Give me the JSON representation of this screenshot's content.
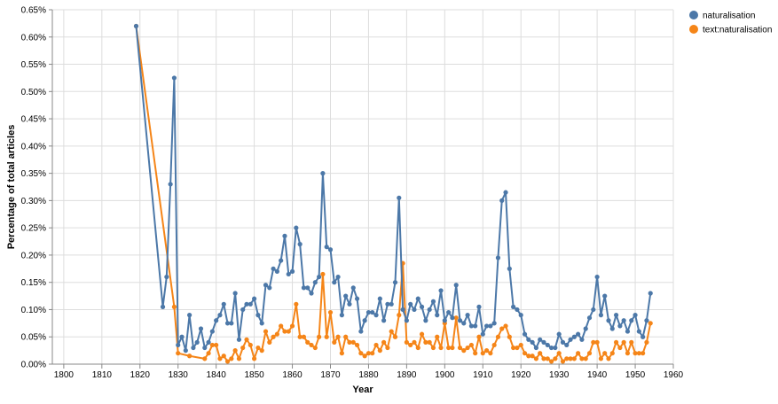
{
  "chart_data": {
    "type": "line",
    "xlabel": "Year",
    "ylabel": "Percentage of total articles",
    "xlim": [
      1797,
      1960
    ],
    "ylim": [
      0,
      0.0065
    ],
    "x_ticks": [
      1800,
      1810,
      1820,
      1830,
      1840,
      1850,
      1860,
      1870,
      1880,
      1890,
      1900,
      1910,
      1920,
      1930,
      1940,
      1950,
      1960
    ],
    "x_tick_labels": [
      "1800",
      "1810",
      "1820",
      "1830",
      "1840",
      "1850",
      "1860",
      "1870",
      "1880",
      "1890",
      "1900",
      "1910",
      "1920",
      "1930",
      "1940",
      "1950",
      "1960"
    ],
    "y_ticks": [
      0,
      0.0005,
      0.001,
      0.0015,
      0.002,
      0.0025,
      0.003,
      0.0035,
      0.004,
      0.0045,
      0.005,
      0.0055,
      0.006,
      0.0065
    ],
    "y_tick_labels": [
      "0.00%",
      "0.05%",
      "0.10%",
      "0.15%",
      "0.20%",
      "0.25%",
      "0.30%",
      "0.35%",
      "0.40%",
      "0.45%",
      "0.50%",
      "0.55%",
      "0.60%",
      "0.65%"
    ],
    "grid": true,
    "legend_position": "top-right",
    "series": [
      {
        "name": "naturalisation",
        "color": "#4c78a8",
        "x": [
          1819,
          1826,
          1827,
          1828,
          1829,
          1830,
          1831,
          1832,
          1833,
          1834,
          1835,
          1836,
          1837,
          1838,
          1839,
          1840,
          1841,
          1842,
          1843,
          1844,
          1845,
          1846,
          1847,
          1848,
          1849,
          1850,
          1851,
          1852,
          1853,
          1854,
          1855,
          1856,
          1857,
          1858,
          1859,
          1860,
          1861,
          1862,
          1863,
          1864,
          1865,
          1866,
          1867,
          1868,
          1869,
          1870,
          1871,
          1872,
          1873,
          1874,
          1875,
          1876,
          1877,
          1878,
          1879,
          1880,
          1881,
          1882,
          1883,
          1884,
          1885,
          1886,
          1887,
          1888,
          1889,
          1890,
          1891,
          1892,
          1893,
          1894,
          1895,
          1896,
          1897,
          1898,
          1899,
          1900,
          1901,
          1902,
          1903,
          1904,
          1905,
          1906,
          1907,
          1908,
          1909,
          1910,
          1911,
          1912,
          1913,
          1914,
          1915,
          1916,
          1917,
          1918,
          1919,
          1920,
          1921,
          1922,
          1923,
          1924,
          1925,
          1926,
          1927,
          1928,
          1929,
          1930,
          1931,
          1932,
          1933,
          1934,
          1935,
          1936,
          1937,
          1938,
          1939,
          1940,
          1941,
          1942,
          1943,
          1944,
          1945,
          1946,
          1947,
          1948,
          1949,
          1950,
          1951,
          1952,
          1953,
          1954
        ],
        "values": [
          0.0062,
          0.00105,
          0.0016,
          0.0033,
          0.00525,
          0.00035,
          0.0005,
          0.00025,
          0.0009,
          0.0003,
          0.0004,
          0.00065,
          0.0003,
          0.0004,
          0.0006,
          0.0008,
          0.0009,
          0.0011,
          0.00075,
          0.00075,
          0.0013,
          0.00045,
          0.001,
          0.0011,
          0.0011,
          0.0012,
          0.0009,
          0.00075,
          0.00145,
          0.0014,
          0.00175,
          0.0017,
          0.0019,
          0.00235,
          0.00165,
          0.0017,
          0.0025,
          0.0022,
          0.0014,
          0.0014,
          0.0013,
          0.0015,
          0.0016,
          0.0035,
          0.00215,
          0.0021,
          0.0015,
          0.0016,
          0.0009,
          0.00125,
          0.0011,
          0.0014,
          0.0012,
          0.0006,
          0.0008,
          0.00095,
          0.00095,
          0.0009,
          0.0012,
          0.0008,
          0.0011,
          0.0011,
          0.0015,
          0.00305,
          0.001,
          0.0008,
          0.0011,
          0.001,
          0.0012,
          0.00105,
          0.0008,
          0.001,
          0.00115,
          0.0009,
          0.00135,
          0.0008,
          0.00095,
          0.00085,
          0.00145,
          0.0008,
          0.00075,
          0.0009,
          0.0007,
          0.0007,
          0.00105,
          0.00055,
          0.0007,
          0.0007,
          0.00075,
          0.00195,
          0.003,
          0.00315,
          0.00175,
          0.00105,
          0.001,
          0.0009,
          0.00055,
          0.00045,
          0.0004,
          0.0003,
          0.00045,
          0.0004,
          0.00035,
          0.0003,
          0.0003,
          0.00055,
          0.0004,
          0.00035,
          0.00045,
          0.0005,
          0.00055,
          0.00045,
          0.00065,
          0.00085,
          0.001,
          0.0016,
          0.0009,
          0.00125,
          0.0008,
          0.00065,
          0.0009,
          0.0007,
          0.0008,
          0.0006,
          0.0008,
          0.0009,
          0.0006,
          0.0005,
          0.0008,
          0.0013
        ]
      },
      {
        "name": "text:naturalisation",
        "color": "#f58518",
        "x": [
          1819,
          1829,
          1830,
          1833,
          1837,
          1838,
          1839,
          1840,
          1841,
          1842,
          1843,
          1844,
          1845,
          1846,
          1847,
          1848,
          1849,
          1850,
          1851,
          1852,
          1853,
          1854,
          1855,
          1856,
          1857,
          1858,
          1859,
          1860,
          1861,
          1862,
          1863,
          1864,
          1865,
          1866,
          1867,
          1868,
          1869,
          1870,
          1871,
          1872,
          1873,
          1874,
          1875,
          1876,
          1877,
          1878,
          1879,
          1880,
          1881,
          1882,
          1883,
          1884,
          1885,
          1886,
          1887,
          1888,
          1889,
          1890,
          1891,
          1892,
          1893,
          1894,
          1895,
          1896,
          1897,
          1898,
          1899,
          1900,
          1901,
          1902,
          1903,
          1904,
          1905,
          1906,
          1907,
          1908,
          1909,
          1910,
          1911,
          1912,
          1913,
          1914,
          1915,
          1916,
          1917,
          1918,
          1919,
          1920,
          1921,
          1922,
          1923,
          1924,
          1925,
          1926,
          1927,
          1928,
          1929,
          1930,
          1931,
          1932,
          1933,
          1934,
          1935,
          1936,
          1937,
          1938,
          1939,
          1940,
          1941,
          1942,
          1943,
          1944,
          1945,
          1946,
          1947,
          1948,
          1949,
          1950,
          1951,
          1952,
          1953,
          1954
        ],
        "values": [
          0.0062,
          0.00105,
          0.0002,
          0.00015,
          0.0001,
          0.0002,
          0.00035,
          0.00035,
          0.0001,
          0.00015,
          5e-05,
          0.0001,
          0.00025,
          0.0001,
          0.0003,
          0.00045,
          0.00035,
          0.0001,
          0.0003,
          0.00025,
          0.0006,
          0.0004,
          0.0005,
          0.00055,
          0.0007,
          0.0006,
          0.0006,
          0.0007,
          0.0011,
          0.0005,
          0.0005,
          0.0004,
          0.00035,
          0.0003,
          0.0005,
          0.00165,
          0.0005,
          0.00095,
          0.0004,
          0.0005,
          0.0002,
          0.0005,
          0.0004,
          0.0004,
          0.00035,
          0.0002,
          0.00015,
          0.0002,
          0.0002,
          0.00035,
          0.00025,
          0.0004,
          0.0003,
          0.0006,
          0.0005,
          0.0009,
          0.00185,
          0.0004,
          0.00035,
          0.0004,
          0.0003,
          0.00055,
          0.0004,
          0.0004,
          0.0003,
          0.0005,
          0.0003,
          0.00075,
          0.0003,
          0.0003,
          0.00085,
          0.0003,
          0.00025,
          0.0003,
          0.00035,
          0.0002,
          0.0005,
          0.0002,
          0.00025,
          0.0002,
          0.00035,
          0.0005,
          0.00065,
          0.0007,
          0.0005,
          0.0003,
          0.0003,
          0.00035,
          0.0002,
          0.00015,
          0.00015,
          0.0001,
          0.0002,
          0.0001,
          0.0001,
          5e-05,
          0.0001,
          0.0002,
          5e-05,
          0.0001,
          0.0001,
          0.0001,
          0.0002,
          0.0001,
          0.0001,
          0.0002,
          0.0004,
          0.0004,
          0.0001,
          0.0002,
          0.0001,
          0.0002,
          0.0004,
          0.0003,
          0.0004,
          0.0002,
          0.0004,
          0.0002,
          0.0002,
          0.0002,
          0.0004,
          0.00075
        ]
      }
    ]
  }
}
